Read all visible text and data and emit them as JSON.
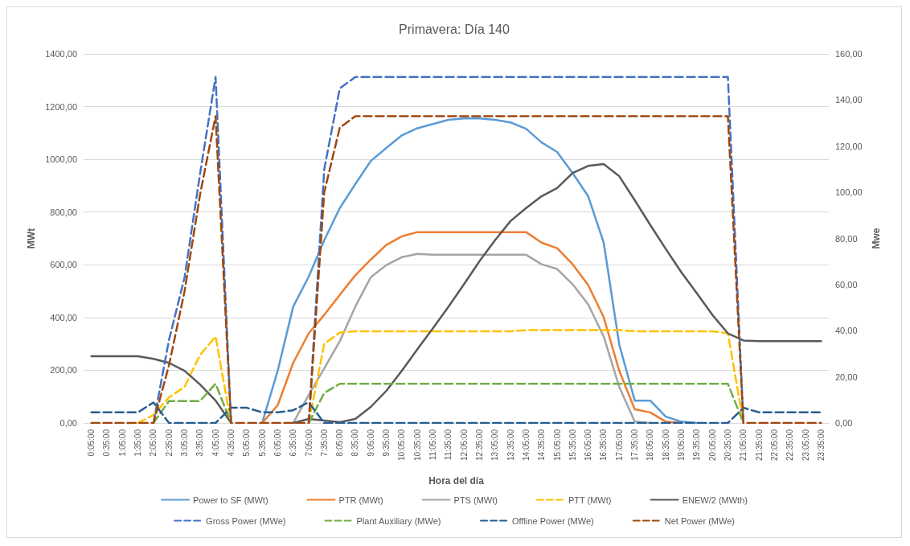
{
  "chart_data": {
    "type": "line",
    "title": "Primavera: Día 140",
    "xlabel": "Hora del día",
    "ylabel": "MWt",
    "y2label": "Mwe",
    "categories": [
      "0:05:00",
      "0:35:00",
      "1:05:00",
      "1:35:00",
      "2:05:00",
      "2:35:00",
      "3:05:00",
      "3:35:00",
      "4:05:00",
      "4:35:00",
      "5:05:00",
      "5:35:00",
      "6:05:00",
      "6:35:00",
      "7:05:00",
      "7:35:00",
      "8:05:00",
      "8:35:00",
      "9:05:00",
      "9:35:00",
      "10:05:00",
      "10:35:00",
      "11:05:00",
      "11:35:00",
      "12:05:00",
      "12:35:00",
      "13:05:00",
      "13:35:00",
      "14:05:00",
      "14:35:00",
      "15:05:00",
      "15:35:00",
      "16:05:00",
      "16:35:00",
      "17:05:00",
      "17:35:00",
      "18:05:00",
      "18:35:00",
      "19:05:00",
      "19:35:00",
      "20:05:00",
      "20:35:00",
      "21:05:00",
      "21:35:00",
      "22:05:00",
      "22:35:00",
      "23:05:00",
      "23:35:00"
    ],
    "ylim": [
      0,
      1400
    ],
    "yticks": [
      {
        "value": 0,
        "label": "0,00"
      },
      {
        "value": 200,
        "label": "200,00"
      },
      {
        "value": 400,
        "label": "400,00"
      },
      {
        "value": 600,
        "label": "600,00"
      },
      {
        "value": 800,
        "label": "800,00"
      },
      {
        "value": 1000,
        "label": "1000,00"
      },
      {
        "value": 1200,
        "label": "1200,00"
      },
      {
        "value": 1400,
        "label": "1400,00"
      }
    ],
    "y2lim": [
      0,
      160
    ],
    "y2ticks": [
      {
        "value": 0,
        "label": "0,00"
      },
      {
        "value": 20,
        "label": "20,00"
      },
      {
        "value": 40,
        "label": "40,00"
      },
      {
        "value": 60,
        "label": "60,00"
      },
      {
        "value": 80,
        "label": "80,00"
      },
      {
        "value": 100,
        "label": "100,00"
      },
      {
        "value": 120,
        "label": "120,00"
      },
      {
        "value": 140,
        "label": "140,00"
      },
      {
        "value": 160,
        "label": "160,00"
      }
    ],
    "grid": "y",
    "legend": "bottom",
    "marker": "none",
    "series": [
      {
        "name": "Power to SF (MWt)",
        "color": "#5b9bd5",
        "line_style": "solid",
        "values": [
          null,
          null,
          null,
          null,
          null,
          null,
          null,
          null,
          null,
          null,
          null,
          0,
          198,
          441,
          555,
          693,
          815,
          906,
          994,
          1043,
          1091,
          1118,
          1134,
          1150,
          1155,
          1155,
          1150,
          1140,
          1116,
          1064,
          1028,
          948,
          860,
          684,
          298,
          85,
          85,
          24,
          5,
          0,
          null,
          null,
          null,
          null,
          null,
          null,
          null,
          null
        ]
      },
      {
        "name": "PTR (MWt)",
        "color": "#ed7d31",
        "line_style": "solid",
        "values": [
          null,
          null,
          null,
          null,
          null,
          null,
          null,
          null,
          null,
          null,
          null,
          0,
          67,
          228,
          340,
          410,
          486,
          560,
          620,
          675,
          708,
          724,
          724,
          724,
          724,
          724,
          724,
          724,
          724,
          684,
          663,
          602,
          523,
          401,
          198,
          52,
          40,
          5,
          0,
          null,
          null,
          null,
          null,
          null,
          null,
          null,
          null,
          null
        ]
      },
      {
        "name": "PTS (MWt)",
        "color": "#a5a5a5",
        "line_style": "solid",
        "values": [
          null,
          null,
          null,
          null,
          null,
          null,
          null,
          null,
          null,
          null,
          null,
          null,
          null,
          0,
          106,
          207,
          310,
          441,
          553,
          599,
          629,
          641,
          638,
          638,
          638,
          638,
          638,
          638,
          638,
          602,
          584,
          526,
          450,
          328,
          137,
          5,
          0,
          null,
          null,
          null,
          null,
          null,
          null,
          null,
          null,
          null,
          null,
          null
        ]
      },
      {
        "name": "PTT (MWt)",
        "color": "#ffc000",
        "line_style": "dashed",
        "values": [
          null,
          null,
          null,
          0,
          30,
          97,
          137,
          258,
          328,
          0,
          null,
          null,
          null,
          null,
          0,
          300,
          343,
          348,
          348,
          348,
          348,
          348,
          348,
          348,
          348,
          348,
          348,
          348,
          352,
          352,
          352,
          352,
          352,
          352,
          352,
          348,
          348,
          348,
          348,
          348,
          348,
          340,
          0,
          null,
          null,
          null,
          null,
          null
        ]
      },
      {
        "name": "ENEW/2 (MWth)",
        "color": "#595959",
        "line_style": "solid",
        "values": [
          253,
          253,
          253,
          253,
          243,
          228,
          198,
          146,
          85,
          0,
          null,
          null,
          null,
          0,
          15,
          9,
          3,
          15,
          61,
          122,
          198,
          280,
          359,
          441,
          526,
          614,
          693,
          766,
          815,
          860,
          891,
          948,
          975,
          982,
          936,
          845,
          751,
          660,
          572,
          492,
          410,
          340,
          313,
          310,
          310,
          310,
          310,
          310
        ]
      },
      {
        "name": "Gross Power (MWe)",
        "color": "#4472c4",
        "line_style": "dashed",
        "axis": "y2",
        "values": [
          null,
          null,
          null,
          null,
          0,
          36,
          63,
          108,
          150,
          0,
          null,
          null,
          null,
          null,
          0,
          110,
          145,
          150,
          150,
          150,
          150,
          150,
          150,
          150,
          150,
          150,
          150,
          150,
          150,
          150,
          150,
          150,
          150,
          150,
          150,
          150,
          150,
          150,
          150,
          150,
          150,
          150,
          0,
          null,
          null,
          null,
          null,
          null
        ]
      },
      {
        "name": "Plant Auxiliary (MWe)",
        "color": "#70ad47",
        "line_style": "dashed",
        "axis": "y2",
        "values": [
          null,
          null,
          null,
          null,
          0,
          9.5,
          9.5,
          9.5,
          17,
          0,
          null,
          null,
          null,
          null,
          0,
          13,
          17,
          17,
          17,
          17,
          17,
          17,
          17,
          17,
          17,
          17,
          17,
          17,
          17,
          17,
          17,
          17,
          17,
          17,
          17,
          17,
          17,
          17,
          17,
          17,
          17,
          17,
          0,
          null,
          null,
          null,
          null,
          null
        ]
      },
      {
        "name": "Offline Power (MWe)",
        "color": "#255e91",
        "line_style": "dashed",
        "axis": "y2",
        "values": [
          4.6,
          4.6,
          4.6,
          4.6,
          8.9,
          0,
          0,
          0,
          0,
          6.6,
          6.6,
          4.6,
          4.6,
          5.5,
          9,
          0,
          0,
          0,
          0,
          0,
          0,
          0,
          0,
          0,
          0,
          0,
          0,
          0,
          0,
          0,
          0,
          0,
          0,
          0,
          0,
          0,
          0,
          0,
          0,
          0,
          0,
          0,
          6.6,
          4.6,
          4.6,
          4.6,
          4.6,
          4.6
        ]
      },
      {
        "name": "Net Power (MWe)",
        "color": "#9e480e",
        "line_style": "dashed",
        "axis": "y2",
        "values": [
          0,
          0,
          0,
          0,
          0,
          25,
          57,
          99,
          133,
          0,
          0,
          0,
          0,
          0,
          0,
          100,
          128,
          133,
          133,
          133,
          133,
          133,
          133,
          133,
          133,
          133,
          133,
          133,
          133,
          133,
          133,
          133,
          133,
          133,
          133,
          133,
          133,
          133,
          133,
          133,
          133,
          133,
          0,
          0,
          0,
          0,
          0,
          0
        ]
      }
    ]
  }
}
